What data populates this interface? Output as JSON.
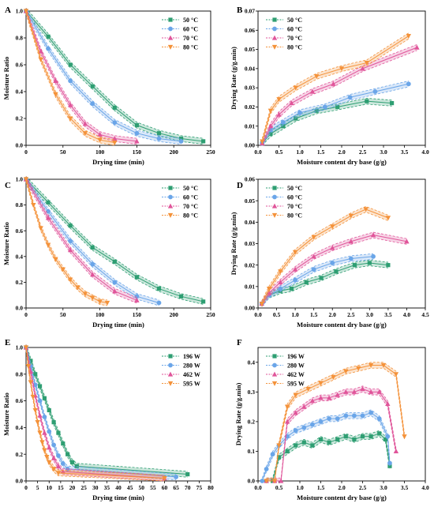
{
  "figure": {
    "colors": [
      "#2e9e72",
      "#6aa5e8",
      "#e0559a",
      "#f4923a"
    ],
    "marker_shapes": [
      "square",
      "circle",
      "triangle-up",
      "triangle-down"
    ]
  },
  "chart_data": [
    {
      "panel": "A",
      "type": "line",
      "xlabel": "Drying time (min)",
      "ylabel": "Moisture Ratio",
      "xlim": [
        0,
        250
      ],
      "ylim": [
        0,
        1.0
      ],
      "xticks": [
        0,
        50,
        100,
        150,
        200,
        250
      ],
      "yticks": [
        0.0,
        0.2,
        0.4,
        0.6,
        0.8,
        1.0
      ],
      "ytick_decimals": 1,
      "legend": "top-right",
      "series": [
        {
          "name": "50 °C",
          "x": [
            0,
            30,
            60,
            90,
            120,
            150,
            180,
            210,
            240
          ],
          "y": [
            1.0,
            0.81,
            0.6,
            0.44,
            0.28,
            0.15,
            0.09,
            0.05,
            0.03
          ]
        },
        {
          "name": "60 °C",
          "x": [
            0,
            30,
            60,
            90,
            120,
            150,
            180,
            210
          ],
          "y": [
            1.0,
            0.72,
            0.48,
            0.31,
            0.17,
            0.09,
            0.05,
            0.03
          ]
        },
        {
          "name": "70 °C",
          "x": [
            0,
            20,
            40,
            60,
            80,
            100,
            120,
            150
          ],
          "y": [
            1.0,
            0.7,
            0.48,
            0.3,
            0.16,
            0.08,
            0.05,
            0.03
          ]
        },
        {
          "name": "80 °C",
          "x": [
            0,
            20,
            40,
            60,
            80,
            100,
            120
          ],
          "y": [
            1.0,
            0.64,
            0.38,
            0.2,
            0.09,
            0.04,
            0.02
          ]
        }
      ]
    },
    {
      "panel": "B",
      "type": "line",
      "xlabel": "Moisture content dry base (g/g)",
      "ylabel": "Drying Rate (g/g.min)",
      "xlim": [
        0,
        4.0
      ],
      "ylim": [
        0,
        0.07
      ],
      "xticks": [
        0.0,
        0.5,
        1.0,
        1.5,
        2.0,
        2.5,
        3.0,
        3.5,
        4.0
      ],
      "yticks": [
        0.0,
        0.01,
        0.02,
        0.03,
        0.04,
        0.05,
        0.06,
        0.07
      ],
      "ytick_decimals": 2,
      "legend": "top-left",
      "series": [
        {
          "name": "50 °C",
          "x": [
            0.1,
            0.3,
            0.6,
            0.9,
            1.4,
            1.9,
            2.6,
            3.2
          ],
          "y": [
            0.001,
            0.006,
            0.01,
            0.014,
            0.018,
            0.02,
            0.023,
            0.022
          ]
        },
        {
          "name": "60 °C",
          "x": [
            0.1,
            0.3,
            0.6,
            1.0,
            1.6,
            2.2,
            2.8,
            3.6
          ],
          "y": [
            0.001,
            0.008,
            0.012,
            0.017,
            0.02,
            0.025,
            0.028,
            0.032
          ]
        },
        {
          "name": "70 °C",
          "x": [
            0.1,
            0.3,
            0.5,
            0.8,
            1.3,
            1.8,
            2.5,
            3.8
          ],
          "y": [
            0.001,
            0.01,
            0.016,
            0.022,
            0.028,
            0.032,
            0.04,
            0.051
          ]
        },
        {
          "name": "80 °C",
          "x": [
            0.1,
            0.3,
            0.5,
            0.9,
            1.4,
            2.0,
            2.6,
            3.6
          ],
          "y": [
            0.002,
            0.018,
            0.024,
            0.03,
            0.036,
            0.04,
            0.043,
            0.057
          ]
        }
      ]
    },
    {
      "panel": "C",
      "type": "line",
      "xlabel": "Drying time (min)",
      "ylabel": "Moisture Ratio",
      "xlim": [
        0,
        250
      ],
      "ylim": [
        0,
        1.0
      ],
      "xticks": [
        0,
        50,
        100,
        150,
        200,
        250
      ],
      "yticks": [
        0.0,
        0.2,
        0.4,
        0.6,
        0.8,
        1.0
      ],
      "ytick_decimals": 1,
      "legend": "top-right",
      "series": [
        {
          "name": "50 °C",
          "x": [
            0,
            30,
            60,
            90,
            120,
            150,
            180,
            210,
            240
          ],
          "y": [
            1.0,
            0.82,
            0.64,
            0.47,
            0.36,
            0.24,
            0.15,
            0.09,
            0.05
          ]
        },
        {
          "name": "60 °C",
          "x": [
            0,
            30,
            60,
            90,
            120,
            150,
            180
          ],
          "y": [
            1.0,
            0.75,
            0.52,
            0.34,
            0.2,
            0.09,
            0.04
          ]
        },
        {
          "name": "70 °C",
          "x": [
            0,
            30,
            60,
            90,
            120,
            150
          ],
          "y": [
            1.0,
            0.7,
            0.45,
            0.26,
            0.13,
            0.06
          ]
        },
        {
          "name": "80 °C",
          "x": [
            0,
            10,
            20,
            30,
            40,
            50,
            60,
            70,
            80,
            90,
            100,
            110
          ],
          "y": [
            1.0,
            0.8,
            0.62,
            0.49,
            0.38,
            0.3,
            0.22,
            0.16,
            0.11,
            0.08,
            0.05,
            0.04
          ]
        }
      ]
    },
    {
      "panel": "D",
      "type": "line",
      "xlabel": "Moisture content dry base (g/g)",
      "ylabel": "Drying Rate (g/g.min)",
      "xlim": [
        0,
        4.5
      ],
      "ylim": [
        0,
        0.06
      ],
      "xticks": [
        0.0,
        0.5,
        1.0,
        1.5,
        2.0,
        2.5,
        3.0,
        3.5,
        4.0,
        4.5
      ],
      "yticks": [
        0.0,
        0.01,
        0.02,
        0.03,
        0.04,
        0.05,
        0.06
      ],
      "ytick_decimals": 2,
      "legend": "top-left",
      "series": [
        {
          "name": "50 °C",
          "x": [
            0.1,
            0.3,
            0.6,
            0.9,
            1.3,
            1.7,
            2.1,
            2.6,
            3.0,
            3.5
          ],
          "y": [
            0.002,
            0.006,
            0.008,
            0.009,
            0.012,
            0.014,
            0.017,
            0.02,
            0.021,
            0.02
          ]
        },
        {
          "name": "60 °C",
          "x": [
            0.1,
            0.3,
            0.6,
            1.0,
            1.5,
            2.0,
            2.5,
            3.1
          ],
          "y": [
            0.002,
            0.006,
            0.009,
            0.013,
            0.018,
            0.021,
            0.023,
            0.024
          ]
        },
        {
          "name": "70 °C",
          "x": [
            0.1,
            0.3,
            0.6,
            1.0,
            1.5,
            2.0,
            2.5,
            3.1,
            4.0
          ],
          "y": [
            0.002,
            0.007,
            0.012,
            0.018,
            0.024,
            0.028,
            0.031,
            0.034,
            0.031
          ]
        },
        {
          "name": "80 °C",
          "x": [
            0.1,
            0.3,
            0.6,
            1.0,
            1.5,
            2.0,
            2.5,
            2.9,
            3.5
          ],
          "y": [
            0.002,
            0.009,
            0.017,
            0.026,
            0.033,
            0.038,
            0.043,
            0.046,
            0.042
          ]
        }
      ]
    },
    {
      "panel": "E",
      "type": "line",
      "xlabel": "Drying time (min)",
      "ylabel": "Moisture Ratio",
      "xlim": [
        0,
        80
      ],
      "ylim": [
        0,
        1.0
      ],
      "xticks": [
        0,
        5,
        10,
        15,
        20,
        25,
        30,
        35,
        40,
        45,
        50,
        55,
        60,
        65,
        70,
        75,
        80
      ],
      "yticks": [
        0.0,
        0.2,
        0.4,
        0.6,
        0.8,
        1.0
      ],
      "ytick_decimals": 1,
      "legend": "top-right",
      "series": [
        {
          "name": "196 W",
          "x": [
            0,
            2,
            4,
            6,
            8,
            10,
            12,
            14,
            16,
            18,
            20,
            22,
            70
          ],
          "y": [
            1.0,
            0.9,
            0.8,
            0.71,
            0.62,
            0.53,
            0.44,
            0.36,
            0.28,
            0.2,
            0.14,
            0.11,
            0.05
          ]
        },
        {
          "name": "280 W",
          "x": [
            0,
            2,
            4,
            6,
            8,
            10,
            12,
            14,
            16,
            18,
            65
          ],
          "y": [
            1.0,
            0.86,
            0.72,
            0.6,
            0.48,
            0.37,
            0.27,
            0.19,
            0.13,
            0.09,
            0.03
          ]
        },
        {
          "name": "462 W",
          "x": [
            0,
            2,
            4,
            6,
            8,
            10,
            12,
            14,
            16,
            60
          ],
          "y": [
            1.0,
            0.82,
            0.64,
            0.49,
            0.36,
            0.25,
            0.17,
            0.11,
            0.07,
            0.02
          ]
        },
        {
          "name": "595 W",
          "x": [
            0,
            1,
            2,
            3,
            4,
            5,
            6,
            7,
            8,
            9,
            10,
            12,
            14,
            60
          ],
          "y": [
            1.0,
            0.86,
            0.74,
            0.63,
            0.53,
            0.44,
            0.36,
            0.29,
            0.23,
            0.18,
            0.14,
            0.09,
            0.06,
            0.02
          ]
        }
      ]
    },
    {
      "panel": "F",
      "type": "line",
      "xlabel": "Moisture content dry base (g/g)",
      "ylabel": "Drying Rate (g/g.min)",
      "xlim": [
        0,
        4.0
      ],
      "ylim": [
        0,
        0.45
      ],
      "xticks": [
        0.0,
        0.5,
        1.0,
        1.5,
        2.0,
        2.5,
        3.0,
        3.5,
        4.0
      ],
      "yticks": [
        0.0,
        0.1,
        0.2,
        0.3,
        0.4
      ],
      "ytick_decimals": 1,
      "legend": "top-left",
      "series": [
        {
          "name": "196 W",
          "x": [
            0.2,
            0.35,
            0.5,
            0.7,
            0.9,
            1.1,
            1.3,
            1.5,
            1.7,
            1.9,
            2.1,
            2.3,
            2.5,
            2.7,
            2.9,
            3.05,
            3.15
          ],
          "y": [
            0.0,
            0.0,
            0.08,
            0.1,
            0.12,
            0.13,
            0.12,
            0.14,
            0.13,
            0.14,
            0.15,
            0.14,
            0.15,
            0.15,
            0.16,
            0.14,
            0.05
          ]
        },
        {
          "name": "280 W",
          "x": [
            0.1,
            0.2,
            0.35,
            0.5,
            0.7,
            0.9,
            1.1,
            1.3,
            1.5,
            1.7,
            1.9,
            2.1,
            2.3,
            2.5,
            2.7,
            2.9,
            3.1,
            3.15
          ],
          "y": [
            0.0,
            0.04,
            0.09,
            0.12,
            0.15,
            0.17,
            0.18,
            0.19,
            0.2,
            0.21,
            0.21,
            0.22,
            0.22,
            0.22,
            0.23,
            0.21,
            0.15,
            0.06
          ]
        },
        {
          "name": "462 W",
          "x": [
            0.2,
            0.4,
            0.55,
            0.7,
            0.9,
            1.1,
            1.3,
            1.5,
            1.7,
            1.9,
            2.1,
            2.3,
            2.5,
            2.7,
            2.9,
            3.1,
            3.3
          ],
          "y": [
            0.0,
            0.0,
            0.0,
            0.2,
            0.23,
            0.25,
            0.27,
            0.28,
            0.28,
            0.29,
            0.3,
            0.3,
            0.31,
            0.3,
            0.3,
            0.26,
            0.1
          ]
        },
        {
          "name": "595 W",
          "x": [
            0.2,
            0.4,
            0.5,
            0.7,
            0.9,
            1.2,
            1.5,
            1.8,
            2.1,
            2.4,
            2.7,
            3.0,
            3.3,
            3.5
          ],
          "y": [
            0.0,
            0.0,
            0.12,
            0.25,
            0.29,
            0.31,
            0.33,
            0.35,
            0.37,
            0.38,
            0.39,
            0.39,
            0.36,
            0.15
          ]
        }
      ]
    }
  ]
}
